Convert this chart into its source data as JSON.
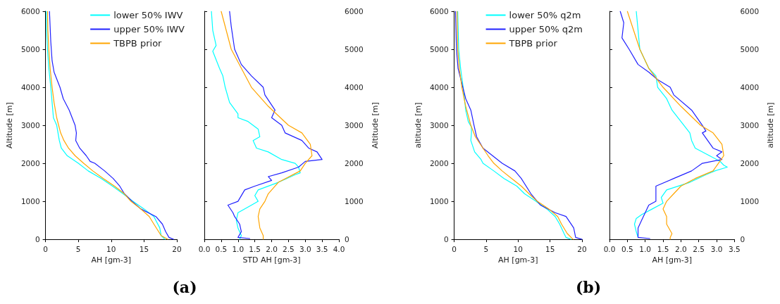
{
  "chart_data": [
    {
      "type": "line",
      "xlabel": "AH [gm-3]",
      "ylabel": "Altitude [m]",
      "xlim": [
        0,
        20
      ],
      "xticks": [
        0,
        5,
        10,
        15,
        20
      ],
      "ylim": [
        0,
        6000
      ],
      "yticks": [
        0,
        1000,
        2000,
        3000,
        4000,
        5000,
        6000
      ],
      "grid": false,
      "legend": "top right",
      "annotations": [
        "(a)"
      ],
      "series": [
        {
          "name": "lower 50% IWV",
          "color": "#00ffff",
          "x": [
            18.2,
            17.6,
            17.4,
            16.5,
            15,
            13.3,
            11.8,
            10.2,
            8.5,
            6.5,
            5,
            3.3,
            2.4,
            2.1,
            1.7,
            1.2,
            1.0,
            0.8,
            0.5,
            0.3,
            0.15,
            0.1
          ],
          "values": [
            0,
            100,
            300,
            600,
            800,
            1000,
            1200,
            1400,
            1600,
            1800,
            2000,
            2200,
            2400,
            2600,
            3000,
            3200,
            3600,
            4000,
            4500,
            5000,
            5500,
            6000
          ]
        },
        {
          "name": "upper 50% IWV",
          "color": "#2020ff",
          "x": [
            19.5,
            18.8,
            18.3,
            17.8,
            16.8,
            14.5,
            13.2,
            12,
            11.3,
            10.3,
            9,
            7.5,
            6.8,
            6.2,
            5.2,
            4.6,
            4.7,
            4.5,
            3.6,
            2.7,
            2.2,
            1.3,
            1.0,
            0.8,
            0.6
          ],
          "values": [
            0,
            50,
            200,
            400,
            600,
            800,
            1000,
            1200,
            1400,
            1600,
            1800,
            2000,
            2050,
            2200,
            2400,
            2600,
            2800,
            3000,
            3400,
            3700,
            4000,
            4400,
            4700,
            5200,
            6000
          ]
        },
        {
          "name": "TBPB prior",
          "color": "#ffa500",
          "x": [
            18.6,
            17.6,
            16.5,
            15.8,
            14.5,
            13,
            12,
            10.5,
            8.8,
            7.2,
            5.8,
            4.5,
            3.5,
            2.8,
            2.3,
            1.7,
            1.3,
            1.0,
            0.7,
            0.5,
            0.35,
            0.3
          ],
          "values": [
            0,
            100,
            400,
            600,
            800,
            1000,
            1200,
            1400,
            1600,
            1800,
            2000,
            2200,
            2400,
            2600,
            2800,
            3200,
            3600,
            4000,
            4500,
            5000,
            5500,
            6000
          ]
        }
      ]
    },
    {
      "type": "line",
      "xlabel": "STD AH [gm-3]",
      "y2label": "Altitude [m]",
      "xlim": [
        0,
        4
      ],
      "xticks": [
        {
          "value": 0,
          "label": "0.0"
        },
        {
          "value": 0.5,
          "label": "0.5"
        },
        {
          "value": 1,
          "label": "1.0"
        },
        {
          "value": 1.5,
          "label": "1.5"
        },
        {
          "value": 2,
          "label": "2.0"
        },
        {
          "value": 2.5,
          "label": "2.5"
        },
        {
          "value": 3,
          "label": "3.0"
        },
        {
          "value": 3.5,
          "label": "3.5"
        },
        {
          "value": 4,
          "label": "4.0"
        }
      ],
      "y2lim": [
        0,
        6000
      ],
      "y2ticks": [
        0,
        1000,
        2000,
        3000,
        4000,
        5000,
        6000
      ],
      "grid": false,
      "series": [
        {
          "color": "#00ffff",
          "axis": "y2",
          "x": [
            1.05,
            1.1,
            1.0,
            0.95,
            1.0,
            1.4,
            1.6,
            1.5,
            1.6,
            2.2,
            2.7,
            2.85,
            2.8,
            2.7,
            2.3,
            1.9,
            1.55,
            1.45,
            1.65,
            1.6,
            1.3,
            1.0,
            1.0,
            0.75,
            0.62,
            0.55,
            0.45,
            0.25,
            0.35,
            0.25,
            0.21
          ],
          "values": [
            0,
            100,
            300,
            500,
            700,
            900,
            1000,
            1150,
            1300,
            1500,
            1700,
            1750,
            1900,
            2000,
            2100,
            2300,
            2400,
            2600,
            2700,
            2900,
            3100,
            3200,
            3300,
            3600,
            4000,
            4300,
            4500,
            4950,
            5100,
            5500,
            6000
          ]
        },
        {
          "color": "#2020ff",
          "axis": "y2",
          "x": [
            1.35,
            1.0,
            1.1,
            1.05,
            0.9,
            0.85,
            0.7,
            1.0,
            1.2,
            1.5,
            2.0,
            1.9,
            2.3,
            2.8,
            3.0,
            3.5,
            3.35,
            3.1,
            2.9,
            2.4,
            2.3,
            2.0,
            2.1,
            1.8,
            1.75,
            1.4,
            1.1,
            0.9,
            0.8,
            0.75
          ],
          "values": [
            20,
            50,
            200,
            400,
            600,
            700,
            900,
            1000,
            1300,
            1400,
            1550,
            1650,
            1750,
            1900,
            2050,
            2100,
            2300,
            2400,
            2600,
            2800,
            3000,
            3200,
            3400,
            3800,
            4000,
            4300,
            4600,
            5000,
            5600,
            6000
          ]
        },
        {
          "color": "#ffa500",
          "axis": "y2",
          "x": [
            1.75,
            1.75,
            1.65,
            1.6,
            1.65,
            1.8,
            1.9,
            2.2,
            2.85,
            3.0,
            3.2,
            3.15,
            2.9,
            2.5,
            1.9,
            1.4,
            0.8,
            0.5
          ],
          "values": [
            0,
            100,
            300,
            600,
            800,
            1000,
            1200,
            1500,
            1800,
            2000,
            2200,
            2500,
            2800,
            3000,
            3500,
            4000,
            5000,
            6000
          ]
        }
      ]
    },
    {
      "type": "line",
      "xlabel": "AH [gm-3]",
      "ylabel": "altitude [m]",
      "xlim": [
        0,
        20
      ],
      "xticks": [
        0,
        5,
        10,
        15,
        20
      ],
      "ylim": [
        0,
        6000
      ],
      "yticks": [
        0,
        1000,
        2000,
        3000,
        4000,
        5000,
        6000
      ],
      "grid": false,
      "legend": "top right",
      "annotations": [
        "(b)"
      ],
      "series": [
        {
          "name": "lower 50% q2m",
          "color": "#00ffff",
          "x": [
            18.3,
            17.5,
            17.2,
            16.5,
            15.8,
            14.5,
            12.8,
            11,
            9.8,
            7.8,
            6.2,
            4.5,
            4.2,
            3.2,
            2.6,
            2.7,
            2.7,
            2.2,
            1.8,
            1.4,
            1.0,
            0.7,
            0.55
          ],
          "values": [
            0,
            50,
            150,
            400,
            600,
            800,
            1000,
            1200,
            1400,
            1600,
            1800,
            2000,
            2100,
            2300,
            2600,
            2800,
            2950,
            3100,
            3400,
            4000,
            4500,
            5000,
            6000
          ]
        },
        {
          "name": "upper 50% q2m",
          "color": "#2020ff",
          "x": [
            20,
            19,
            18.7,
            17.5,
            15.8,
            13.5,
            12,
            10.5,
            9.5,
            7.5,
            6,
            4.5,
            3.5,
            3.1,
            2.6,
            1.8,
            1.2,
            0.6,
            0.35,
            0.2
          ],
          "values": [
            0,
            50,
            300,
            600,
            700,
            900,
            1200,
            1600,
            1800,
            2000,
            2200,
            2400,
            2700,
            3000,
            3400,
            3700,
            4100,
            4500,
            5000,
            6000
          ]
        },
        {
          "name": "TBPB prior",
          "color": "#ffa500",
          "x": [
            18.6,
            17.7,
            16.8,
            16.2,
            14.8,
            13,
            11.7,
            10.5,
            9,
            7.5,
            6.2,
            5.3,
            4.5,
            3.3,
            2.6,
            1.8,
            1.2,
            0.8,
            0.55,
            0.45
          ],
          "values": [
            0,
            150,
            400,
            600,
            800,
            1000,
            1200,
            1400,
            1600,
            1800,
            2000,
            2200,
            2400,
            2700,
            3000,
            3500,
            4000,
            4500,
            5000,
            6000
          ]
        }
      ]
    },
    {
      "type": "line",
      "xlabel": "AH [gm-3]",
      "y2label": "altitude [m]",
      "xlim": [
        0,
        3.5
      ],
      "xticks": [
        {
          "value": 0,
          "label": "0.0"
        },
        {
          "value": 0.5,
          "label": "0.5"
        },
        {
          "value": 1,
          "label": "1.0"
        },
        {
          "value": 1.5,
          "label": "1.5"
        },
        {
          "value": 2,
          "label": "2.0"
        },
        {
          "value": 2.5,
          "label": "2.5"
        },
        {
          "value": 3,
          "label": "3.0"
        },
        {
          "value": 3.5,
          "label": "3.5"
        }
      ],
      "y2lim": [
        0,
        6000
      ],
      "y2ticks": [
        0,
        1000,
        2000,
        3000,
        4000,
        5000,
        6000
      ],
      "grid": false,
      "series": [
        {
          "color": "#00ffff",
          "axis": "y2",
          "x": [
            0.8,
            0.75,
            0.7,
            0.75,
            0.9,
            1.2,
            1.5,
            1.45,
            1.6,
            2.25,
            2.7,
            2.95,
            3.3,
            3.2,
            3.1,
            2.8,
            2.4,
            2.3,
            2.25,
            2.0,
            1.75,
            1.6,
            1.35,
            1.3,
            1.1,
            0.85,
            0.75
          ],
          "values": [
            50,
            200,
            400,
            550,
            650,
            800,
            950,
            1100,
            1300,
            1500,
            1700,
            1800,
            1900,
            1950,
            2050,
            2200,
            2400,
            2600,
            2800,
            3100,
            3400,
            3700,
            4000,
            4300,
            4500,
            5000,
            6000
          ]
        },
        {
          "color": "#2020ff",
          "axis": "y2",
          "x": [
            1.13,
            0.8,
            0.8,
            0.9,
            1.0,
            1.1,
            1.3,
            1.3,
            1.3,
            1.8,
            2.3,
            2.6,
            3.15,
            3.0,
            3.15,
            2.9,
            2.75,
            2.6,
            2.7,
            2.6,
            2.3,
            1.8,
            1.7,
            1.35,
            1.1,
            0.8,
            0.55,
            0.35,
            0.4,
            0.3
          ],
          "values": [
            20,
            50,
            300,
            500,
            700,
            900,
            1000,
            1200,
            1400,
            1600,
            1800,
            2000,
            2100,
            2200,
            2300,
            2400,
            2600,
            2800,
            2850,
            3000,
            3400,
            3800,
            4000,
            4200,
            4400,
            4600,
            5000,
            5300,
            5700,
            6000
          ]
        },
        {
          "color": "#ffa500",
          "axis": "y2",
          "x": [
            1.7,
            1.7,
            1.75,
            1.6,
            1.6,
            1.5,
            1.6,
            1.8,
            2.0,
            2.4,
            2.9,
            3.05,
            3.2,
            3.15,
            2.9,
            2.55,
            2.0,
            1.5,
            1.1,
            0.85,
            0.5
          ],
          "values": [
            0,
            50,
            150,
            400,
            600,
            800,
            1000,
            1200,
            1400,
            1600,
            1800,
            2000,
            2200,
            2500,
            2800,
            3000,
            3500,
            4000,
            4500,
            5000,
            6000
          ]
        }
      ]
    }
  ]
}
